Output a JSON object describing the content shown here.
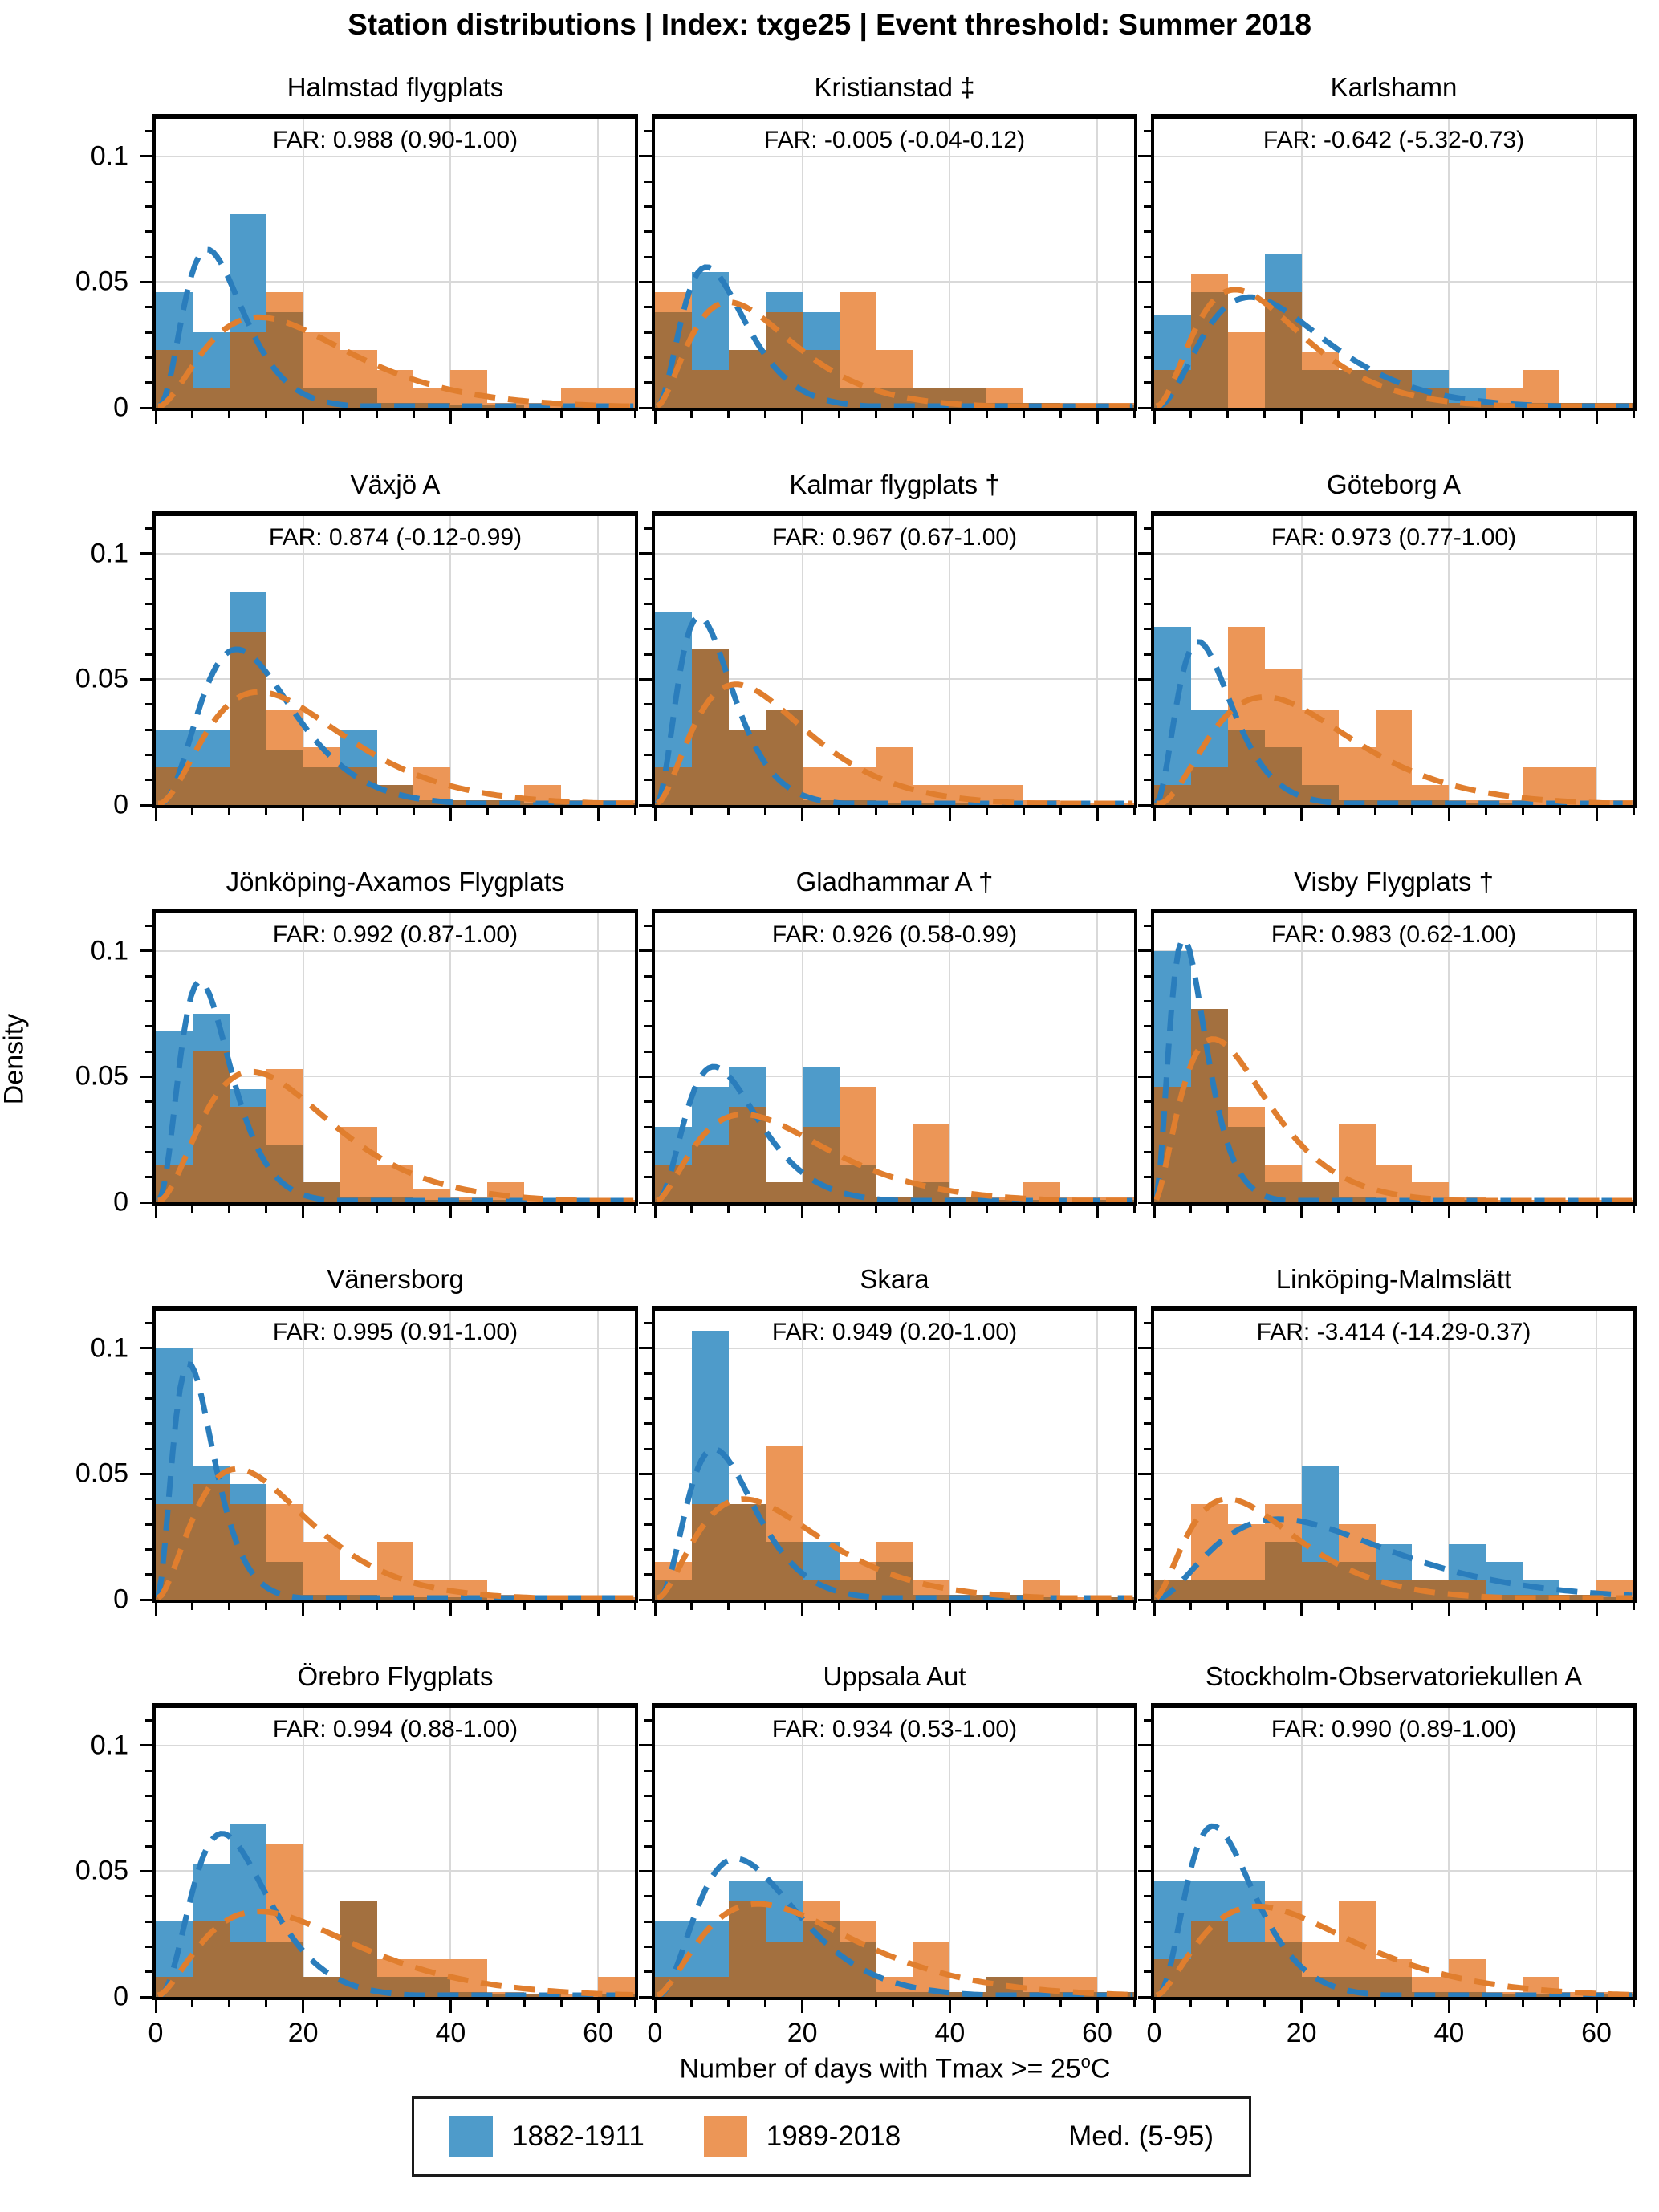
{
  "suptitle": "Station distributions | Index: txge25 | Event threshold: Summer 2018",
  "ylabel": "Density",
  "xlabel_prefix": "Number of days with Tmax >= 25",
  "xlabel_sup": "o",
  "xlabel_suffix": "C",
  "legend": {
    "items": [
      {
        "label": "1882-1911",
        "color": "#4e9bca"
      },
      {
        "label": "1989-2018",
        "color": "#ec9657"
      }
    ],
    "extra": "Med. (5-95)"
  },
  "colors": {
    "blue_bar": "#4e9bca",
    "orange_bar": "#ec9657",
    "overlap_bar": "#a3703f",
    "blue_line": "#2a7dbc",
    "orange_line": "#e07e2e",
    "grid": "#d9d9d9"
  },
  "chart_data": {
    "type": "bar",
    "subtype": "overlapping-histograms-with-density-curves",
    "x_bins": {
      "start": 0,
      "width": 5,
      "count": 13
    },
    "x_max": 65,
    "x_ticks": [
      0,
      20,
      40,
      60
    ],
    "x_minor_step": 5,
    "y_max": 0.115,
    "y_ticks": [
      0,
      0.05,
      0.1
    ],
    "y_tick_labels": [
      "0",
      "0.05",
      "0.1"
    ],
    "y_minor_step": 0.01,
    "grid": true,
    "series_names": [
      "1882-1911",
      "1989-2018"
    ],
    "subplots": [
      {
        "title": "Halmstad flygplats",
        "far": "FAR: 0.988 (0.90-1.00)",
        "blue": [
          0.046,
          0.03,
          0.077,
          0.038,
          0.008,
          0.008,
          0.002,
          0.002,
          0.001,
          0.001,
          0.0,
          0.001,
          0.0
        ],
        "orange": [
          0.023,
          0.008,
          0.03,
          0.046,
          0.03,
          0.023,
          0.015,
          0.008,
          0.015,
          0.002,
          0.002,
          0.008,
          0.008
        ],
        "blue_curve": {
          "peak_x": 7,
          "peak_y": 0.063,
          "shape": 3
        },
        "orange_curve": {
          "peak_x": 14,
          "peak_y": 0.036,
          "shape": 2
        }
      },
      {
        "title": "Kristianstad ‡",
        "far": "FAR: -0.005 (-0.04-0.12)",
        "blue": [
          0.038,
          0.054,
          0.023,
          0.046,
          0.038,
          0.008,
          0.008,
          0.008,
          0.008,
          0.002,
          0.002,
          0.001,
          0.001
        ],
        "orange": [
          0.046,
          0.015,
          0.023,
          0.038,
          0.023,
          0.046,
          0.023,
          0.008,
          0.008,
          0.008,
          0.002,
          0.002,
          0.002
        ],
        "blue_curve": {
          "peak_x": 7,
          "peak_y": 0.056,
          "shape": 2.6
        },
        "orange_curve": {
          "peak_x": 10,
          "peak_y": 0.042,
          "shape": 2
        }
      },
      {
        "title": "Karlshamn",
        "far": "FAR: -0.642 (-5.32-0.73)",
        "blue": [
          0.037,
          0.046,
          0.0,
          0.061,
          0.015,
          0.015,
          0.015,
          0.015,
          0.008,
          0.002,
          0.002,
          0.002,
          0.002
        ],
        "orange": [
          0.015,
          0.053,
          0.03,
          0.046,
          0.022,
          0.015,
          0.015,
          0.008,
          0.002,
          0.008,
          0.015,
          0.002,
          0.002
        ],
        "blue_curve": {
          "peak_x": 13,
          "peak_y": 0.044,
          "shape": 2.4
        },
        "orange_curve": {
          "peak_x": 11,
          "peak_y": 0.047,
          "shape": 2.2
        }
      },
      {
        "title": "Växjö A",
        "far": "FAR: 0.874 (-0.12-0.99)",
        "blue": [
          0.03,
          0.03,
          0.085,
          0.022,
          0.015,
          0.03,
          0.008,
          0.002,
          0.002,
          0.002,
          0.001,
          0.001,
          0.001
        ],
        "orange": [
          0.015,
          0.015,
          0.069,
          0.038,
          0.023,
          0.015,
          0.008,
          0.015,
          0.002,
          0.002,
          0.008,
          0.002,
          0.002
        ],
        "blue_curve": {
          "peak_x": 11,
          "peak_y": 0.062,
          "shape": 3
        },
        "orange_curve": {
          "peak_x": 14,
          "peak_y": 0.045,
          "shape": 2.2
        }
      },
      {
        "title": "Kalmar flygplats †",
        "far": "FAR: 0.967 (0.67-1.00)",
        "blue": [
          0.077,
          0.062,
          0.03,
          0.038,
          0.002,
          0.002,
          0.001,
          0.001,
          0.001,
          0.0,
          0.0,
          0.0,
          0.0
        ],
        "orange": [
          0.015,
          0.062,
          0.03,
          0.038,
          0.015,
          0.015,
          0.023,
          0.008,
          0.008,
          0.008,
          0.002,
          0.001,
          0.001
        ],
        "blue_curve": {
          "peak_x": 6,
          "peak_y": 0.075,
          "shape": 2.6
        },
        "orange_curve": {
          "peak_x": 11,
          "peak_y": 0.048,
          "shape": 2
        }
      },
      {
        "title": "Göteborg A",
        "far": "FAR: 0.973 (0.77-1.00)",
        "blue": [
          0.071,
          0.038,
          0.03,
          0.023,
          0.008,
          0.002,
          0.002,
          0.002,
          0.001,
          0.001,
          0.0,
          0.0,
          0.0
        ],
        "orange": [
          0.008,
          0.015,
          0.071,
          0.054,
          0.038,
          0.023,
          0.038,
          0.008,
          0.002,
          0.002,
          0.015,
          0.015,
          0.002
        ],
        "blue_curve": {
          "peak_x": 6,
          "peak_y": 0.065,
          "shape": 2.6
        },
        "orange_curve": {
          "peak_x": 15,
          "peak_y": 0.043,
          "shape": 2.4
        }
      },
      {
        "title": "Jönköping-Axamos Flygplats",
        "far": "FAR: 0.992 (0.87-1.00)",
        "blue": [
          0.068,
          0.075,
          0.045,
          0.023,
          0.008,
          0.002,
          0.002,
          0.001,
          0.001,
          0.001,
          0.0,
          0.0,
          0.0
        ],
        "orange": [
          0.015,
          0.06,
          0.038,
          0.053,
          0.008,
          0.03,
          0.015,
          0.005,
          0.002,
          0.008,
          0.001,
          0.001,
          0.001
        ],
        "blue_curve": {
          "peak_x": 6,
          "peak_y": 0.088,
          "shape": 3
        },
        "orange_curve": {
          "peak_x": 13,
          "peak_y": 0.052,
          "shape": 2.2
        }
      },
      {
        "title": "Gladhammar A †",
        "far": "FAR: 0.926 (0.58-0.99)",
        "blue": [
          0.03,
          0.046,
          0.054,
          0.008,
          0.054,
          0.015,
          0.002,
          0.008,
          0.002,
          0.001,
          0.001,
          0.0,
          0.001
        ],
        "orange": [
          0.015,
          0.023,
          0.038,
          0.008,
          0.03,
          0.046,
          0.002,
          0.031,
          0.002,
          0.002,
          0.008,
          0.002,
          0.002
        ],
        "blue_curve": {
          "peak_x": 8,
          "peak_y": 0.054,
          "shape": 2.6
        },
        "orange_curve": {
          "peak_x": 12,
          "peak_y": 0.035,
          "shape": 1.8
        }
      },
      {
        "title": "Visby Flygplats †",
        "far": "FAR: 0.983 (0.62-1.00)",
        "blue": [
          0.1,
          0.077,
          0.03,
          0.008,
          0.008,
          0.002,
          0.0,
          0.0,
          0.001,
          0.0,
          0.0,
          0.0,
          0.0
        ],
        "orange": [
          0.046,
          0.077,
          0.038,
          0.015,
          0.008,
          0.031,
          0.015,
          0.008,
          0.002,
          0.001,
          0.001,
          0.001,
          0.001
        ],
        "blue_curve": {
          "peak_x": 4,
          "peak_y": 0.105,
          "shape": 2.6
        },
        "orange_curve": {
          "peak_x": 8,
          "peak_y": 0.065,
          "shape": 1.8
        }
      },
      {
        "title": "Vänersborg",
        "far": "FAR: 0.995 (0.91-1.00)",
        "blue": [
          0.1,
          0.053,
          0.046,
          0.015,
          0.002,
          0.002,
          0.001,
          0.001,
          0.001,
          0.0,
          0.0,
          0.0,
          0.0
        ],
        "orange": [
          0.038,
          0.046,
          0.038,
          0.038,
          0.023,
          0.008,
          0.023,
          0.008,
          0.008,
          0.002,
          0.001,
          0.001,
          0.001
        ],
        "blue_curve": {
          "peak_x": 4.5,
          "peak_y": 0.094,
          "shape": 2.6
        },
        "orange_curve": {
          "peak_x": 11,
          "peak_y": 0.052,
          "shape": 2
        }
      },
      {
        "title": "Skara",
        "far": "FAR: 0.949 (0.20-1.00)",
        "blue": [
          0.008,
          0.107,
          0.038,
          0.023,
          0.023,
          0.008,
          0.015,
          0.002,
          0.002,
          0.002,
          0.001,
          0.0,
          0.001
        ],
        "orange": [
          0.015,
          0.038,
          0.038,
          0.061,
          0.008,
          0.015,
          0.023,
          0.008,
          0.002,
          0.002,
          0.008,
          0.001,
          0.001
        ],
        "blue_curve": {
          "peak_x": 8,
          "peak_y": 0.06,
          "shape": 3
        },
        "orange_curve": {
          "peak_x": 12,
          "peak_y": 0.04,
          "shape": 2
        }
      },
      {
        "title": "Linköping-Malmslätt",
        "far": "FAR: -3.414 (-14.29-0.37)",
        "blue": [
          0.008,
          0.008,
          0.008,
          0.023,
          0.053,
          0.015,
          0.022,
          0.008,
          0.022,
          0.015,
          0.008,
          0.002,
          0.001
        ],
        "orange": [
          0.008,
          0.038,
          0.03,
          0.038,
          0.015,
          0.03,
          0.008,
          0.008,
          0.008,
          0.002,
          0.002,
          0.002,
          0.008
        ],
        "blue_curve": {
          "peak_x": 17,
          "peak_y": 0.032,
          "shape": 2
        },
        "orange_curve": {
          "peak_x": 10,
          "peak_y": 0.04,
          "shape": 1.8
        }
      },
      {
        "title": "Örebro Flygplats",
        "far": "FAR: 0.994 (0.88-1.00)",
        "blue": [
          0.03,
          0.053,
          0.069,
          0.022,
          0.008,
          0.038,
          0.008,
          0.008,
          0.002,
          0.001,
          0.001,
          0.0,
          0.001
        ],
        "orange": [
          0.008,
          0.03,
          0.022,
          0.061,
          0.008,
          0.038,
          0.015,
          0.015,
          0.015,
          0.002,
          0.001,
          0.001,
          0.008
        ],
        "blue_curve": {
          "peak_x": 9,
          "peak_y": 0.065,
          "shape": 3
        },
        "orange_curve": {
          "peak_x": 14,
          "peak_y": 0.034,
          "shape": 1.8
        }
      },
      {
        "title": "Uppsala Aut",
        "far": "FAR: 0.934 (0.53-1.00)",
        "blue": [
          0.03,
          0.03,
          0.046,
          0.046,
          0.03,
          0.022,
          0.002,
          0.002,
          0.002,
          0.008,
          0.002,
          0.002,
          0.002
        ],
        "orange": [
          0.008,
          0.008,
          0.038,
          0.022,
          0.038,
          0.03,
          0.008,
          0.022,
          0.002,
          0.008,
          0.008,
          0.008,
          0.002
        ],
        "blue_curve": {
          "peak_x": 11,
          "peak_y": 0.055,
          "shape": 2.6
        },
        "orange_curve": {
          "peak_x": 14,
          "peak_y": 0.037,
          "shape": 1.8
        }
      },
      {
        "title": "Stockholm-Observatoriekullen A",
        "far": "FAR: 0.990 (0.89-1.00)",
        "blue": [
          0.046,
          0.046,
          0.046,
          0.022,
          0.008,
          0.008,
          0.008,
          0.002,
          0.002,
          0.001,
          0.001,
          0.0,
          0.001
        ],
        "orange": [
          0.015,
          0.03,
          0.022,
          0.038,
          0.022,
          0.038,
          0.015,
          0.008,
          0.015,
          0.002,
          0.008,
          0.002,
          0.002
        ],
        "blue_curve": {
          "peak_x": 8,
          "peak_y": 0.068,
          "shape": 3
        },
        "orange_curve": {
          "peak_x": 14,
          "peak_y": 0.036,
          "shape": 1.8
        }
      }
    ]
  }
}
